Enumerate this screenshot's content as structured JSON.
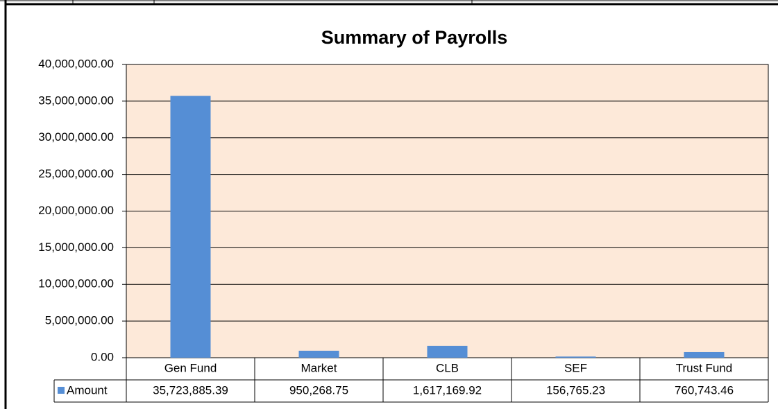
{
  "chart_data": {
    "type": "bar",
    "title": "Summary of Payrolls",
    "categories": [
      "Gen Fund",
      "Market",
      "CLB",
      "SEF",
      "Trust Fund"
    ],
    "series": [
      {
        "name": "Amount",
        "color": "#558ed5",
        "values": [
          35723885.39,
          950268.75,
          1617169.92,
          156765.23,
          760743.46
        ],
        "value_labels": [
          "35,723,885.39",
          "950,268.75",
          "1,617,169.92",
          "156,765.23",
          "760,743.46"
        ]
      }
    ],
    "ylim": [
      0,
      40000000
    ],
    "yticks": [
      {
        "value": 0,
        "label": "0.00"
      },
      {
        "value": 5000000,
        "label": "5,000,000.00"
      },
      {
        "value": 10000000,
        "label": "10,000,000.00"
      },
      {
        "value": 15000000,
        "label": "15,000,000.00"
      },
      {
        "value": 20000000,
        "label": "20,000,000.00"
      },
      {
        "value": 25000000,
        "label": "25,000,000.00"
      },
      {
        "value": 30000000,
        "label": "30,000,000.00"
      },
      {
        "value": 35000000,
        "label": "35,000,000.00"
      },
      {
        "value": 40000000,
        "label": "40,000,000.00"
      }
    ],
    "grid": true,
    "plot_background": "#fde9d9"
  }
}
